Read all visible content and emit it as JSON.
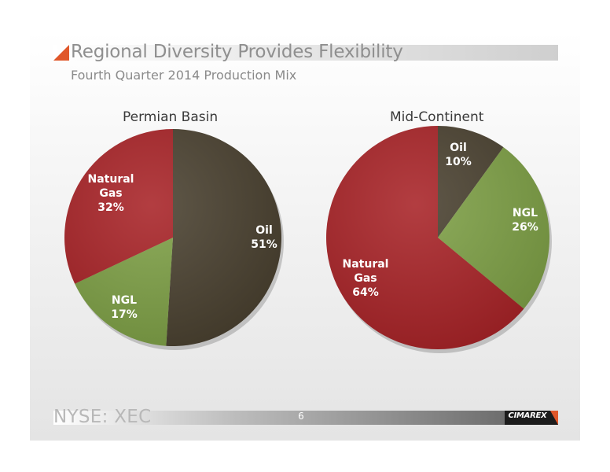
{
  "header": {
    "title": "Regional Diversity Provides Flexibility",
    "subtitle": "Fourth Quarter 2014 Production Mix"
  },
  "footer": {
    "ticker": "NYSE: XEC",
    "page_number": "6",
    "logo_text": "CIMAREX"
  },
  "colors": {
    "oil": "#4a4130",
    "ngl": "#7ea046",
    "natural_gas": "#a82327",
    "brand_accent": "#e0572a",
    "label_text": "#ffffff"
  },
  "chart_data": [
    {
      "type": "pie",
      "title": "Permian Basin",
      "slices": [
        {
          "name": "Oil",
          "label_lines": [
            "Oil",
            "51%"
          ],
          "value": 51,
          "color": "#4a4130"
        },
        {
          "name": "NGL",
          "label_lines": [
            "NGL",
            "17%"
          ],
          "value": 17,
          "color": "#7ea046"
        },
        {
          "name": "Natural Gas",
          "label_lines": [
            "Natural",
            "Gas",
            "32%"
          ],
          "value": 32,
          "color": "#a82327"
        }
      ]
    },
    {
      "type": "pie",
      "title": "Mid-Continent",
      "slices": [
        {
          "name": "Oil",
          "label_lines": [
            "Oil",
            "10%"
          ],
          "value": 10,
          "color": "#4a4130"
        },
        {
          "name": "NGL",
          "label_lines": [
            "NGL",
            "26%"
          ],
          "value": 26,
          "color": "#7ea046"
        },
        {
          "name": "Natural Gas",
          "label_lines": [
            "Natural",
            "Gas",
            "64%"
          ],
          "value": 64,
          "color": "#a82327"
        }
      ]
    }
  ]
}
